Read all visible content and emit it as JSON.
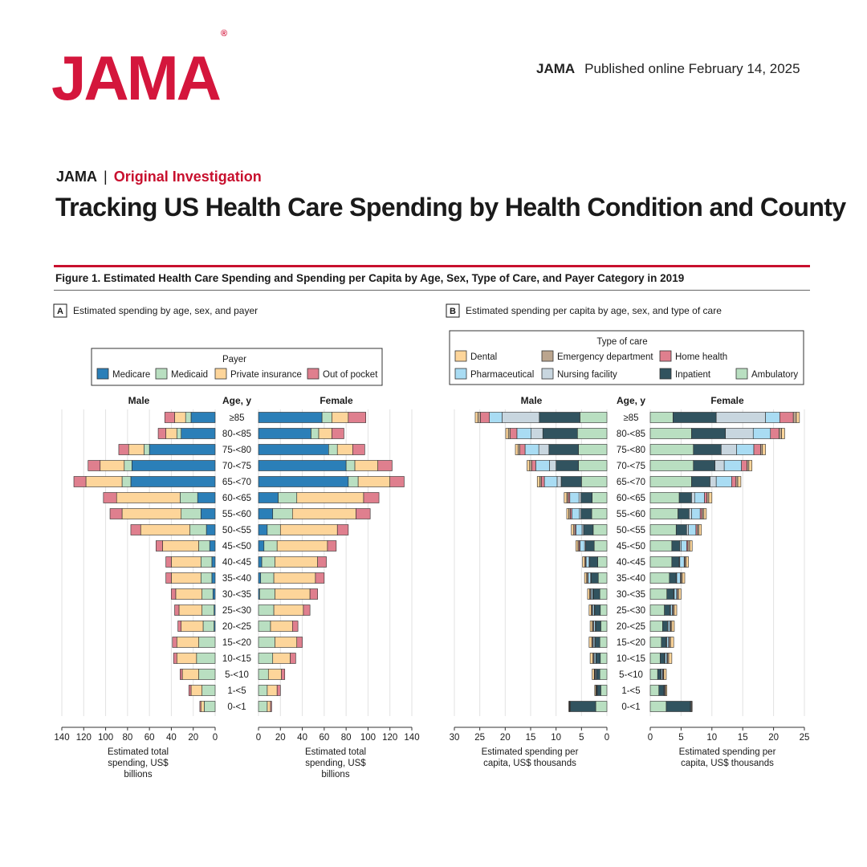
{
  "header": {
    "logo": "JAMA",
    "logo_mark": "®",
    "journal": "JAMA",
    "published": "Published online February  14, 2025",
    "section_journal": "JAMA",
    "section_separator": "|",
    "section_type": "Original Investigation",
    "title": "Tracking US Health Care Spending by Health Condition and County"
  },
  "figure": {
    "title": "Figure 1. Estimated Health Care Spending and Spending per Capita by Age, Sex, Type of Care, and Payer Category in 2019"
  },
  "colors": {
    "medicare": "#2b7fb8",
    "medicaid": "#b9dfc1",
    "private": "#fdd59a",
    "oop": "#df7f8e",
    "dental": "#fdd59a",
    "ed": "#bba58e",
    "home": "#df7f8e",
    "pharma": "#a9dcf3",
    "nursing": "#c8d6df",
    "inpatient": "#31535f",
    "ambulatory": "#b9dfc1",
    "accent": "#c8102e"
  },
  "chart_data": [
    {
      "type": "bar",
      "panel": "A",
      "panel_title": "Estimated spending by age, sex, and payer",
      "legend_title": "Payer",
      "legend_position": "top",
      "sex_labels": [
        "Male",
        "Female"
      ],
      "age_header": "Age, y",
      "categories": [
        "≥85",
        "80-<85",
        "75-<80",
        "70-<75",
        "65-<70",
        "60-<65",
        "55-<60",
        "50-<55",
        "45-<50",
        "40-<45",
        "35-<40",
        "30-<35",
        "25-<30",
        "20-<25",
        "15-<20",
        "10-<15",
        "5-<10",
        "1-<5",
        "0-<1"
      ],
      "xlabel": "Estimated total spending, US$ billions",
      "xlim": [
        0,
        140
      ],
      "ticks": [
        0,
        20,
        40,
        60,
        80,
        100,
        120,
        140
      ],
      "grid": true,
      "series": [
        {
          "name": "Medicare",
          "key": "medicare",
          "male": [
            22,
            31,
            60,
            76,
            77,
            16,
            13,
            8,
            5,
            3,
            3,
            2,
            1,
            1,
            0,
            0,
            0,
            0,
            0
          ],
          "female": [
            58,
            48,
            64,
            80,
            82,
            18,
            13,
            8,
            5,
            3,
            2,
            1,
            0,
            0,
            0,
            0,
            0,
            0,
            0
          ]
        },
        {
          "name": "Medicaid",
          "key": "medicaid",
          "male": [
            5,
            4,
            5,
            7,
            8,
            16,
            18,
            15,
            10,
            10,
            10,
            10,
            11,
            10,
            15,
            17,
            15,
            12,
            10
          ],
          "female": [
            9,
            7,
            8,
            8,
            9,
            17,
            18,
            12,
            12,
            12,
            12,
            14,
            14,
            11,
            15,
            13,
            9,
            8,
            8
          ]
        },
        {
          "name": "Private insurance",
          "key": "private",
          "male": [
            10,
            10,
            14,
            22,
            33,
            58,
            54,
            45,
            33,
            27,
            27,
            24,
            21,
            20,
            20,
            18,
            15,
            10,
            3
          ],
          "female": [
            15,
            12,
            14,
            21,
            29,
            61,
            58,
            52,
            46,
            39,
            38,
            32,
            27,
            20,
            20,
            16,
            12,
            9,
            3
          ]
        },
        {
          "name": "Out of pocket",
          "key": "oop",
          "male": [
            9,
            7,
            9,
            11,
            11,
            12,
            11,
            9,
            6,
            5,
            5,
            4,
            4,
            3,
            4,
            3,
            2,
            2,
            1
          ],
          "female": [
            16,
            11,
            11,
            13,
            13,
            14,
            13,
            10,
            8,
            8,
            8,
            7,
            6,
            5,
            5,
            5,
            3,
            3,
            1
          ]
        }
      ]
    },
    {
      "type": "bar",
      "panel": "B",
      "panel_title": "Estimated spending per capita by age, sex, and type of care",
      "legend_title": "Type of care",
      "legend_position": "top",
      "sex_labels": [
        "Male",
        "Female"
      ],
      "age_header": "Age, y",
      "categories": [
        "≥85",
        "80-<85",
        "75-<80",
        "70-<75",
        "65-<70",
        "60-<65",
        "55-<60",
        "50-<55",
        "45-<50",
        "40-<45",
        "35-<40",
        "30-<35",
        "25-<30",
        "20-<25",
        "15-<20",
        "10-<15",
        "5-<10",
        "1-<5",
        "0-<1"
      ],
      "xlabel": "Estimated spending per capita, US$ thousands",
      "xlim_male": [
        0,
        30
      ],
      "ticks_male": [
        0,
        5,
        10,
        15,
        20,
        25,
        30
      ],
      "xlim_female": [
        0,
        25
      ],
      "ticks_female": [
        0,
        5,
        10,
        15,
        20,
        25
      ],
      "grid": true,
      "series": [
        {
          "name": "Ambulatory",
          "key": "ambulatory",
          "male": [
            5.3,
            5.8,
            5.6,
            5.6,
            5.0,
            2.9,
            3.0,
            2.7,
            2.5,
            1.8,
            1.7,
            1.4,
            1.3,
            1.2,
            1.4,
            1.3,
            1.4,
            1.2,
            2.2
          ],
          "female": [
            3.7,
            6.7,
            7.0,
            7.0,
            6.7,
            4.7,
            4.5,
            4.2,
            3.5,
            3.5,
            3.1,
            2.7,
            2.3,
            2.0,
            1.8,
            1.6,
            1.2,
            1.4,
            2.6
          ]
        },
        {
          "name": "Inpatient",
          "key": "inpatient",
          "male": [
            8.0,
            6.8,
            5.8,
            4.4,
            4.0,
            2.2,
            2.1,
            1.9,
            1.7,
            1.6,
            1.4,
            1.3,
            1.1,
            1.0,
            0.9,
            0.8,
            0.6,
            0.7,
            5.0
          ],
          "female": [
            7.0,
            5.5,
            4.5,
            3.5,
            3.0,
            2.0,
            1.8,
            1.7,
            1.3,
            1.2,
            1.1,
            1.1,
            0.9,
            0.8,
            0.8,
            0.7,
            0.5,
            0.8,
            3.9
          ]
        },
        {
          "name": "Nursing facility",
          "key": "nursing",
          "male": [
            7.3,
            2.3,
            2.0,
            1.3,
            0.8,
            0.4,
            0.3,
            0.3,
            0.2,
            0.1,
            0.1,
            0.1,
            0.1,
            0.1,
            0.1,
            0.1,
            0.1,
            0.0,
            0.0
          ],
          "female": [
            8.0,
            4.5,
            2.5,
            1.5,
            1.0,
            0.5,
            0.4,
            0.3,
            0.2,
            0.1,
            0.1,
            0.1,
            0.1,
            0.1,
            0.1,
            0.1,
            0.1,
            0.0,
            0.0
          ]
        },
        {
          "name": "Pharmaceutical",
          "key": "pharma",
          "male": [
            2.5,
            2.8,
            2.7,
            2.7,
            2.5,
            1.8,
            1.5,
            1.2,
            0.9,
            0.6,
            0.5,
            0.3,
            0.3,
            0.3,
            0.3,
            0.3,
            0.2,
            0.1,
            0.1
          ],
          "female": [
            2.3,
            2.8,
            2.8,
            2.8,
            2.5,
            1.6,
            1.4,
            1.2,
            0.9,
            0.7,
            0.6,
            0.4,
            0.3,
            0.3,
            0.3,
            0.3,
            0.2,
            0.1,
            0.1
          ]
        },
        {
          "name": "Home health",
          "key": "home",
          "male": [
            1.8,
            1.3,
            1.0,
            0.8,
            0.6,
            0.3,
            0.3,
            0.2,
            0.2,
            0.1,
            0.1,
            0.1,
            0.1,
            0.1,
            0.1,
            0.1,
            0.1,
            0.1,
            0.1
          ],
          "female": [
            2.2,
            1.4,
            1.1,
            0.9,
            0.7,
            0.4,
            0.3,
            0.2,
            0.2,
            0.1,
            0.1,
            0.1,
            0.1,
            0.1,
            0.1,
            0.1,
            0.1,
            0.1,
            0.1
          ]
        },
        {
          "name": "Emergency department",
          "key": "ed",
          "male": [
            0.5,
            0.4,
            0.4,
            0.4,
            0.3,
            0.3,
            0.3,
            0.3,
            0.2,
            0.2,
            0.2,
            0.2,
            0.2,
            0.2,
            0.2,
            0.2,
            0.1,
            0.1,
            0.1
          ],
          "female": [
            0.5,
            0.4,
            0.3,
            0.3,
            0.3,
            0.3,
            0.3,
            0.3,
            0.3,
            0.2,
            0.2,
            0.2,
            0.2,
            0.2,
            0.2,
            0.2,
            0.1,
            0.1,
            0.1
          ]
        },
        {
          "name": "Dental",
          "key": "dental",
          "male": [
            0.5,
            0.5,
            0.5,
            0.5,
            0.5,
            0.5,
            0.4,
            0.4,
            0.4,
            0.4,
            0.4,
            0.4,
            0.4,
            0.4,
            0.5,
            0.5,
            0.4,
            0.2,
            0.0
          ],
          "female": [
            0.5,
            0.5,
            0.5,
            0.5,
            0.5,
            0.5,
            0.4,
            0.4,
            0.4,
            0.4,
            0.4,
            0.4,
            0.4,
            0.4,
            0.5,
            0.5,
            0.4,
            0.2,
            0.0
          ]
        }
      ],
      "legend_order": [
        "dental",
        "ed",
        "home",
        "pharma",
        "nursing",
        "inpatient",
        "ambulatory"
      ]
    }
  ]
}
